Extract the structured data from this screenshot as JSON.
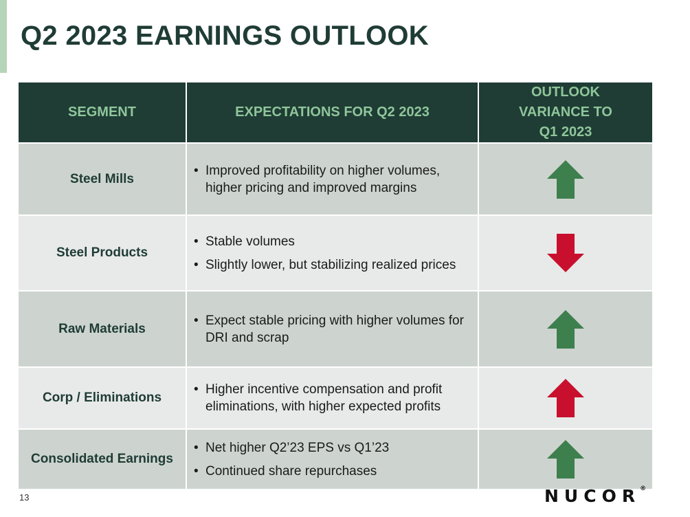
{
  "title": "Q2 2023 EARNINGS OUTLOOK",
  "table": {
    "headers": [
      "SEGMENT",
      "EXPECTATIONS FOR Q2 2023",
      "OUTLOOK VARIANCE TO Q1 2023"
    ],
    "rows": [
      {
        "segment": "Steel Mills",
        "bullets": [
          "Improved profitability on higher volumes, higher pricing and improved margins"
        ],
        "variance": "up",
        "arrow_color": "#3e7f4e"
      },
      {
        "segment": "Steel Products",
        "bullets": [
          "Stable volumes",
          "Slightly lower, but stabilizing realized prices"
        ],
        "variance": "down",
        "arrow_color": "#c8102e"
      },
      {
        "segment": "Raw Materials",
        "bullets": [
          "Expect stable pricing with higher volumes for DRI and scrap"
        ],
        "variance": "up",
        "arrow_color": "#3e7f4e"
      },
      {
        "segment": "Corp / Eliminations",
        "bullets": [
          "Higher incentive compensation and profit eliminations, with higher expected profits"
        ],
        "variance": "up",
        "arrow_color": "#c8102e"
      },
      {
        "segment": "Consolidated Earnings",
        "bullets": [
          "Net higher Q2’23 EPS vs Q1’23",
          "Continued share repurchases"
        ],
        "variance": "up",
        "arrow_color": "#3e7f4e"
      }
    ]
  },
  "footer": {
    "page_number": "13",
    "logo_text": "NUCOR",
    "logo_mark": "®"
  },
  "colors": {
    "header_bg": "#1f3c35",
    "header_text": "#8fc69a",
    "row_dark": "#cdd4cf",
    "row_light": "#e8eae9"
  }
}
